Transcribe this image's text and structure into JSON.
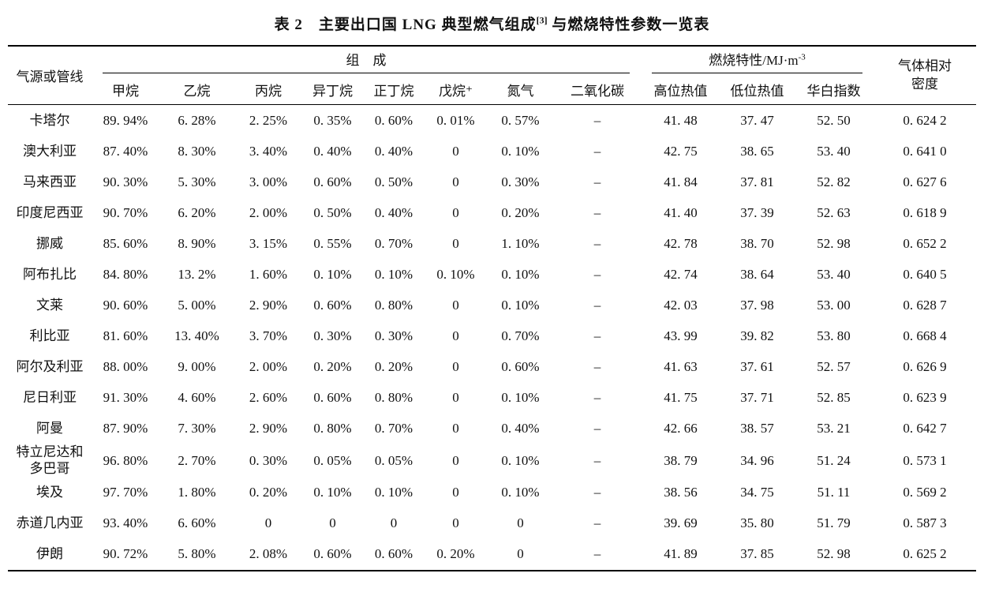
{
  "title": {
    "part1": "表 2　主要出口国 LNG 典型燃气组成",
    "sup": "[3]",
    "part2": "与燃烧特性参数一览表"
  },
  "table": {
    "header": {
      "source_col": "气源或管线",
      "composition_group": "组　成",
      "combustion_group": "燃烧特性/MJ·m",
      "combustion_group_sup": "-3",
      "density_col_line1": "气体相对",
      "density_col_line2": "密度",
      "sub_columns": [
        "甲烷",
        "乙烷",
        "丙烷",
        "异丁烷",
        "正丁烷",
        "戊烷⁺",
        "氮气",
        "二氧化碳",
        "高位热值",
        "低位热值",
        "华白指数"
      ]
    },
    "rows": [
      {
        "name": "卡塔尔",
        "values": [
          "89. 94%",
          "6. 28%",
          "2. 25%",
          "0. 35%",
          "0. 60%",
          "0. 01%",
          "0. 57%",
          "–",
          "41. 48",
          "37. 47",
          "52. 50",
          "0. 624 2"
        ]
      },
      {
        "name": "澳大利亚",
        "values": [
          "87. 40%",
          "8. 30%",
          "3. 40%",
          "0. 40%",
          "0. 40%",
          "0",
          "0. 10%",
          "–",
          "42. 75",
          "38. 65",
          "53. 40",
          "0. 641 0"
        ]
      },
      {
        "name": "马来西亚",
        "values": [
          "90. 30%",
          "5. 30%",
          "3. 00%",
          "0. 60%",
          "0. 50%",
          "0",
          "0. 30%",
          "–",
          "41. 84",
          "37. 81",
          "52. 82",
          "0. 627 6"
        ]
      },
      {
        "name": "印度尼西亚",
        "values": [
          "90. 70%",
          "6. 20%",
          "2. 00%",
          "0. 50%",
          "0. 40%",
          "0",
          "0. 20%",
          "–",
          "41. 40",
          "37. 39",
          "52. 63",
          "0. 618 9"
        ]
      },
      {
        "name": "挪威",
        "values": [
          "85. 60%",
          "8. 90%",
          "3. 15%",
          "0. 55%",
          "0. 70%",
          "0",
          "1. 10%",
          "–",
          "42. 78",
          "38. 70",
          "52. 98",
          "0. 652 2"
        ]
      },
      {
        "name": "阿布扎比",
        "values": [
          "84. 80%",
          "13. 2%",
          "1. 60%",
          "0. 10%",
          "0. 10%",
          "0. 10%",
          "0. 10%",
          "–",
          "42. 74",
          "38. 64",
          "53. 40",
          "0. 640 5"
        ]
      },
      {
        "name": "文莱",
        "values": [
          "90. 60%",
          "5. 00%",
          "2. 90%",
          "0. 60%",
          "0. 80%",
          "0",
          "0. 10%",
          "–",
          "42. 03",
          "37. 98",
          "53. 00",
          "0. 628 7"
        ]
      },
      {
        "name": "利比亚",
        "values": [
          "81. 60%",
          "13. 40%",
          "3. 70%",
          "0. 30%",
          "0. 30%",
          "0",
          "0. 70%",
          "–",
          "43. 99",
          "39. 82",
          "53. 80",
          "0. 668 4"
        ]
      },
      {
        "name": "阿尔及利亚",
        "values": [
          "88. 00%",
          "9. 00%",
          "2. 00%",
          "0. 20%",
          "0. 20%",
          "0",
          "0. 60%",
          "–",
          "41. 63",
          "37. 61",
          "52. 57",
          "0. 626 9"
        ]
      },
      {
        "name": "尼日利亚",
        "values": [
          "91. 30%",
          "4. 60%",
          "2. 60%",
          "0. 60%",
          "0. 80%",
          "0",
          "0. 10%",
          "–",
          "41. 75",
          "37. 71",
          "52. 85",
          "0. 623 9"
        ]
      },
      {
        "name": "阿曼",
        "values": [
          "87. 90%",
          "7. 30%",
          "2. 90%",
          "0. 80%",
          "0. 70%",
          "0",
          "0. 40%",
          "–",
          "42. 66",
          "38. 57",
          "53. 21",
          "0. 642 7"
        ]
      },
      {
        "name": "特立尼达和\n多巴哥",
        "values": [
          "96. 80%",
          "2. 70%",
          "0. 30%",
          "0. 05%",
          "0. 05%",
          "0",
          "0. 10%",
          "–",
          "38. 79",
          "34. 96",
          "51. 24",
          "0. 573 1"
        ]
      },
      {
        "name": "埃及",
        "values": [
          "97. 70%",
          "1. 80%",
          "0. 20%",
          "0. 10%",
          "0. 10%",
          "0",
          "0. 10%",
          "–",
          "38. 56",
          "34. 75",
          "51. 11",
          "0. 569 2"
        ]
      },
      {
        "name": "赤道几内亚",
        "values": [
          "93. 40%",
          "6. 60%",
          "0",
          "0",
          "0",
          "0",
          "0",
          "–",
          "39. 69",
          "35. 80",
          "51. 79",
          "0. 587 3"
        ]
      },
      {
        "name": "伊朗",
        "values": [
          "90. 72%",
          "5. 80%",
          "2. 08%",
          "0. 60%",
          "0. 60%",
          "0. 20%",
          "0",
          "–",
          "41. 89",
          "37. 85",
          "52. 98",
          "0. 625 2"
        ]
      }
    ]
  }
}
